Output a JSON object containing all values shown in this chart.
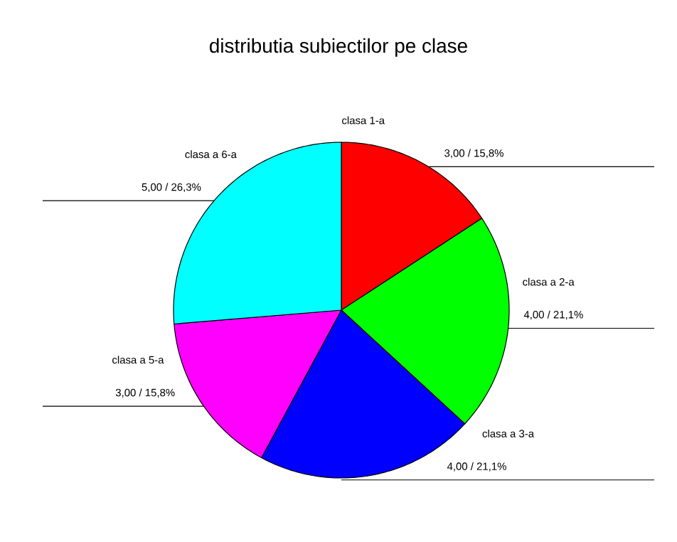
{
  "chart_data": {
    "type": "pie",
    "title": "distributia subiectilor pe clase",
    "categories": [
      "clasa 1-a",
      "clasa a 2-a",
      "clasa a 3-a",
      "clasa a 5-a",
      "clasa a 6-a"
    ],
    "values": [
      3,
      4,
      4,
      3,
      5
    ],
    "value_labels": [
      "3,00 / 15,8%",
      "4,00 / 21,1%",
      "4,00 / 21,1%",
      "3,00 / 15,8%",
      "5,00 / 26,3%"
    ],
    "colors": [
      "#ff0000",
      "#00ff00",
      "#0000ff",
      "#ff00ff",
      "#00ffff"
    ]
  }
}
